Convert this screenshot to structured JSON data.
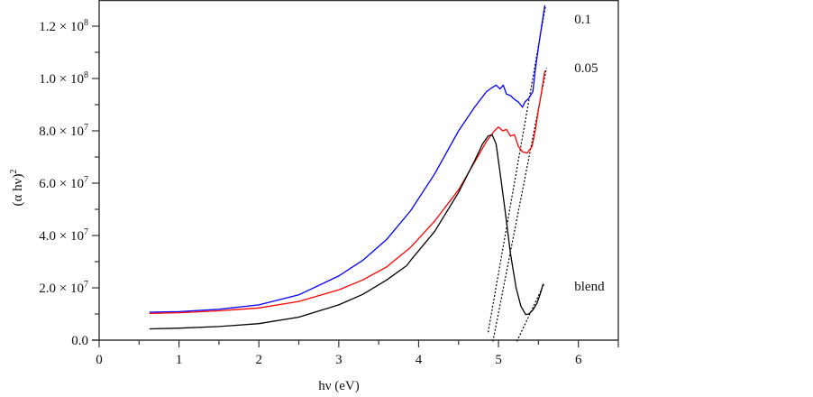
{
  "chart_data": {
    "type": "line",
    "title": "",
    "xlabel": "hν (eV)",
    "ylabel": "(α hν)²",
    "xlim": [
      0,
      6.5
    ],
    "ylim": [
      0,
      130000000
    ],
    "grid": false,
    "x_ticks": [
      {
        "value": 0,
        "label": "0"
      },
      {
        "value": 1,
        "label": "1"
      },
      {
        "value": 2,
        "label": "2"
      },
      {
        "value": 3,
        "label": "3"
      },
      {
        "value": 4,
        "label": "4"
      },
      {
        "value": 5,
        "label": "5"
      },
      {
        "value": 6,
        "label": "6"
      }
    ],
    "y_ticks": [
      {
        "value": 0,
        "mantissa": "0.0",
        "exponent": ""
      },
      {
        "value": 20000000,
        "mantissa": "2.0 × 10",
        "exponent": "7"
      },
      {
        "value": 40000000,
        "mantissa": "4.0 × 10",
        "exponent": "7"
      },
      {
        "value": 60000000,
        "mantissa": "6.0 × 10",
        "exponent": "7"
      },
      {
        "value": 80000000,
        "mantissa": "8.0 × 10",
        "exponent": "7"
      },
      {
        "value": 100000000,
        "mantissa": "1.0 × 10",
        "exponent": "8"
      },
      {
        "value": 120000000,
        "mantissa": "1.2 × 10",
        "exponent": "8"
      }
    ],
    "series": [
      {
        "name": "0.1",
        "color": "#0000ff",
        "x": [
          0.63,
          1.0,
          1.5,
          2.0,
          2.5,
          3.0,
          3.3,
          3.6,
          3.9,
          4.2,
          4.5,
          4.7,
          4.85,
          4.92,
          4.97,
          5.02,
          5.06,
          5.1,
          5.15,
          5.2,
          5.25,
          5.3,
          5.33,
          5.38,
          5.43,
          5.46,
          5.5,
          5.54,
          5.58
        ],
        "y": [
          10700000,
          10900000,
          11800000,
          13500000,
          17300000,
          24500000,
          30500000,
          38500000,
          49500000,
          63500000,
          80000000,
          89000000,
          95000000,
          96500000,
          97500000,
          96000000,
          97500000,
          94000000,
          93500000,
          92000000,
          91000000,
          89000000,
          91000000,
          92500000,
          95000000,
          103000000,
          112000000,
          120000000,
          128000000
        ]
      },
      {
        "name": "0.05",
        "color": "#ff0000",
        "x": [
          0.63,
          1.0,
          1.5,
          2.0,
          2.5,
          3.0,
          3.3,
          3.6,
          3.9,
          4.2,
          4.5,
          4.7,
          4.85,
          4.95,
          5.0,
          5.05,
          5.1,
          5.15,
          5.2,
          5.25,
          5.3,
          5.36,
          5.42,
          5.46,
          5.5,
          5.54,
          5.58
        ],
        "y": [
          10200000,
          10500000,
          11200000,
          12300000,
          14800000,
          19200000,
          23000000,
          28000000,
          35500000,
          45500000,
          57500000,
          68000000,
          76000000,
          80000000,
          81500000,
          80000000,
          80500000,
          78000000,
          78500000,
          74000000,
          72000000,
          71500000,
          74000000,
          80000000,
          88000000,
          95000000,
          103000000
        ]
      },
      {
        "name": "blend",
        "color": "#000000",
        "x": [
          0.63,
          1.0,
          1.5,
          2.0,
          2.5,
          3.0,
          3.3,
          3.6,
          3.85,
          3.9,
          4.2,
          4.5,
          4.7,
          4.8,
          4.87,
          4.92,
          4.97,
          5.02,
          5.08,
          5.15,
          5.22,
          5.28,
          5.34,
          5.38,
          5.43,
          5.48,
          5.52,
          5.56
        ],
        "y": [
          4300000,
          4600000,
          5200000,
          6300000,
          8800000,
          13500000,
          17500000,
          23000000,
          28500000,
          30500000,
          41500000,
          56500000,
          68500000,
          75000000,
          78000000,
          78500000,
          75000000,
          64000000,
          50000000,
          33000000,
          20000000,
          13000000,
          9800000,
          10000000,
          11500000,
          14000000,
          17500000,
          21500000
        ]
      }
    ],
    "tangent_lines": [
      {
        "name": "tangent-0.1",
        "x": [
          4.87,
          5.59
        ],
        "y": [
          3000000,
          128000000
        ]
      },
      {
        "name": "tangent-0.05",
        "x": [
          4.93,
          5.6
        ],
        "y": [
          -500000,
          104000000
        ]
      },
      {
        "name": "tangent-blend",
        "x": [
          5.23,
          5.57
        ],
        "y": [
          -500000,
          21500000
        ]
      }
    ],
    "annotations": [
      {
        "text": "0.1",
        "x": 5.95,
        "y": 121000000
      },
      {
        "text": "0.05",
        "x": 5.95,
        "y": 102500000
      },
      {
        "text": "blend",
        "x": 5.95,
        "y": 19000000
      }
    ]
  }
}
